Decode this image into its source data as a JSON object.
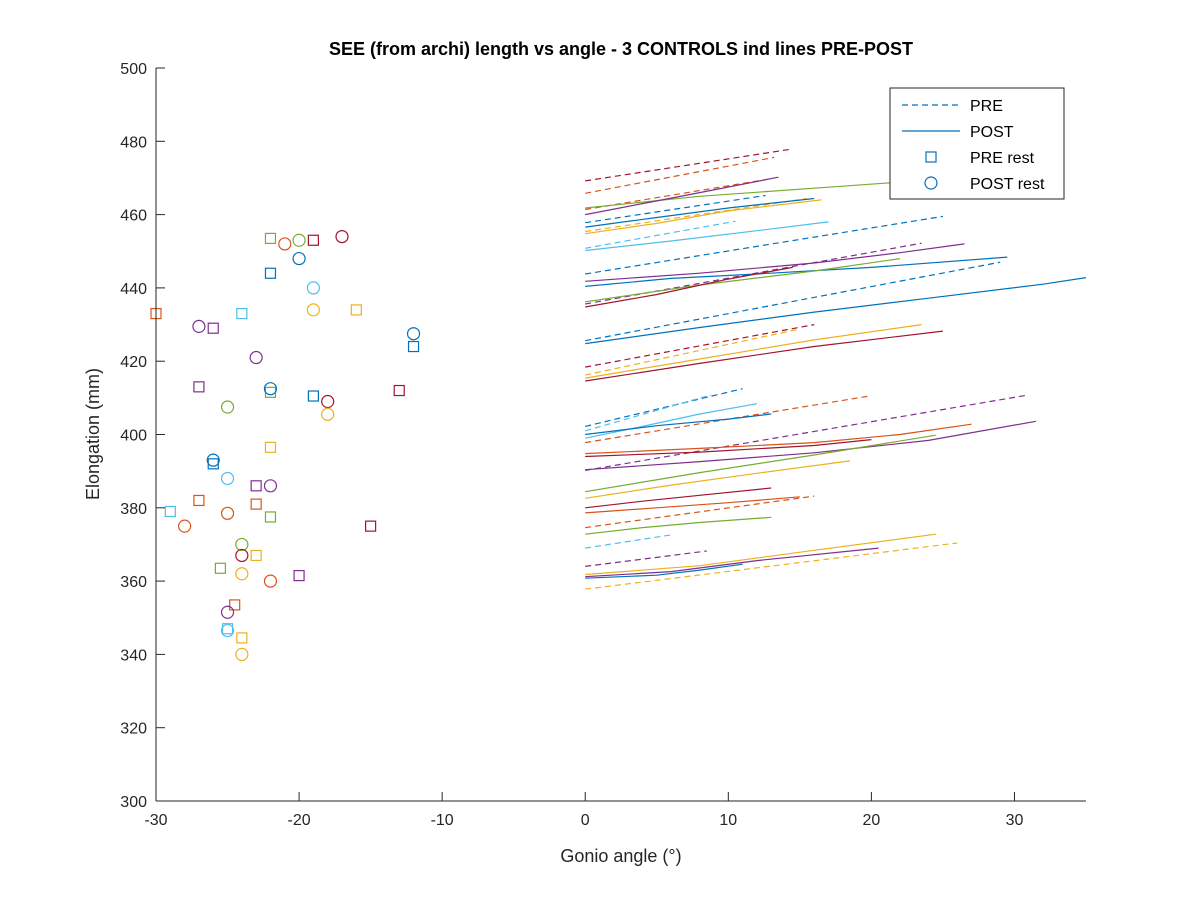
{
  "chart_data": {
    "type": "line",
    "title": "SEE (from archi) length vs angle - 3 CONTROLS ind lines PRE-POST",
    "xlabel": "Gonio angle (°)",
    "ylabel": "Elongation (mm)",
    "xlim": [
      -30,
      35
    ],
    "ylim": [
      300,
      500
    ],
    "xticks": [
      -30,
      -20,
      -10,
      0,
      10,
      20,
      30
    ],
    "yticks": [
      300,
      320,
      340,
      360,
      380,
      400,
      420,
      440,
      460,
      480,
      500
    ],
    "grid": false,
    "legend_position": "top-right",
    "legend": [
      {
        "label": "PRE",
        "style": "dashed-line"
      },
      {
        "label": "POST",
        "style": "solid-line"
      },
      {
        "label": "PRE rest",
        "style": "square-marker"
      },
      {
        "label": "POST rest",
        "style": "circle-marker"
      }
    ],
    "colors": [
      "#0072BD",
      "#D95319",
      "#EDB120",
      "#7E2F8E",
      "#77AC30",
      "#4DBEEE",
      "#A2142F"
    ],
    "series": [
      {
        "group": "PRE",
        "color": "#A2142F",
        "x": [
          0,
          14.3
        ],
        "y": [
          469.2,
          477.8
        ]
      },
      {
        "group": "PRE",
        "color": "#D95319",
        "x": [
          0,
          13.2
        ],
        "y": [
          465.8,
          475.6
        ]
      },
      {
        "group": "PRE",
        "color": "#0072BD",
        "x": [
          0,
          12.6
        ],
        "y": [
          457.8,
          465.2
        ]
      },
      {
        "group": "PRE",
        "color": "#D95319",
        "x": [
          0,
          12.7
        ],
        "y": [
          461.4,
          469.6
        ]
      },
      {
        "group": "PRE",
        "color": "#4DBEEE",
        "x": [
          0,
          10.5
        ],
        "y": [
          450.8,
          458.2
        ]
      },
      {
        "group": "PRE",
        "color": "#EDB120",
        "x": [
          0,
          15.5
        ],
        "y": [
          455.4,
          464.4
        ]
      },
      {
        "group": "PRE",
        "color": "#0072BD",
        "x": [
          0,
          25.0
        ],
        "y": [
          443.8,
          459.5
        ]
      },
      {
        "group": "PRE",
        "color": "#7E2F8E",
        "x": [
          0,
          23.5
        ],
        "y": [
          435.6,
          452.2
        ]
      },
      {
        "group": "PRE",
        "color": "#0072BD",
        "x": [
          0,
          29.0
        ],
        "y": [
          425.6,
          447.0
        ]
      },
      {
        "group": "PRE",
        "color": "#A2142F",
        "x": [
          0,
          16.0
        ],
        "y": [
          418.4,
          430.0
        ]
      },
      {
        "group": "PRE",
        "color": "#EDB120",
        "x": [
          0,
          15.0
        ],
        "y": [
          416.2,
          428.8
        ]
      },
      {
        "group": "PRE",
        "color": "#0072BD",
        "x": [
          0,
          11.0
        ],
        "y": [
          402.2,
          412.5
        ]
      },
      {
        "group": "PRE",
        "color": "#4DBEEE",
        "x": [
          0,
          8.8
        ],
        "y": [
          401.0,
          410.8
        ]
      },
      {
        "group": "PRE",
        "color": "#D95319",
        "x": [
          0,
          20.0
        ],
        "y": [
          397.8,
          410.6
        ]
      },
      {
        "group": "PRE",
        "color": "#7E2F8E",
        "x": [
          0,
          31.0
        ],
        "y": [
          390.2,
          410.8
        ]
      },
      {
        "group": "PRE",
        "color": "#D95319",
        "x": [
          0,
          16.0
        ],
        "y": [
          374.6,
          383.2
        ]
      },
      {
        "group": "PRE",
        "color": "#4DBEEE",
        "x": [
          0,
          6.0
        ],
        "y": [
          369.0,
          372.6
        ]
      },
      {
        "group": "PRE",
        "color": "#7E2F8E",
        "x": [
          0,
          8.5
        ],
        "y": [
          364.0,
          368.2
        ]
      },
      {
        "group": "PRE",
        "color": "#EDB120",
        "x": [
          0,
          26.0
        ],
        "y": [
          357.8,
          370.4
        ]
      },
      {
        "group": "POST",
        "color": "#77AC30",
        "x": [
          0,
          8,
          16,
          24,
          28
        ],
        "y": [
          461.8,
          465.0,
          467.2,
          469.4,
          470.5
        ]
      },
      {
        "group": "POST",
        "color": "#7E2F8E",
        "x": [
          0,
          4,
          8,
          13.5
        ],
        "y": [
          460.0,
          463.0,
          466.0,
          470.2
        ]
      },
      {
        "group": "POST",
        "color": "#0072BD",
        "x": [
          0,
          5,
          10,
          16
        ],
        "y": [
          456.6,
          459.2,
          461.8,
          464.4
        ]
      },
      {
        "group": "POST",
        "color": "#EDB120",
        "x": [
          0,
          5,
          10,
          16.5
        ],
        "y": [
          454.8,
          457.6,
          461.0,
          464.0
        ]
      },
      {
        "group": "POST",
        "color": "#4DBEEE",
        "x": [
          0,
          6,
          12,
          17
        ],
        "y": [
          450.2,
          452.8,
          455.6,
          458.0
        ]
      },
      {
        "group": "POST",
        "color": "#7E2F8E",
        "x": [
          0,
          8,
          16,
          22,
          26.5
        ],
        "y": [
          441.8,
          444.0,
          446.8,
          449.6,
          452.0
        ]
      },
      {
        "group": "POST",
        "color": "#0072BD",
        "x": [
          0,
          6,
          12,
          20,
          29.5
        ],
        "y": [
          440.4,
          442.6,
          443.8,
          445.6,
          448.4
        ]
      },
      {
        "group": "POST",
        "color": "#77AC30",
        "x": [
          0,
          8,
          16,
          22
        ],
        "y": [
          436.2,
          440.8,
          444.6,
          448.0
        ]
      },
      {
        "group": "POST",
        "color": "#A2142F",
        "x": [
          0,
          5,
          10,
          14.5
        ],
        "y": [
          434.8,
          438.2,
          442.4,
          445.6
        ]
      },
      {
        "group": "POST",
        "color": "#0072BD",
        "x": [
          0,
          8,
          16,
          24,
          32,
          35
        ],
        "y": [
          424.8,
          429.2,
          433.4,
          437.2,
          441.0,
          442.8
        ]
      },
      {
        "group": "POST",
        "color": "#EDB120",
        "x": [
          0,
          8,
          16,
          23.5
        ],
        "y": [
          415.4,
          420.6,
          425.8,
          430.0
        ]
      },
      {
        "group": "POST",
        "color": "#A2142F",
        "x": [
          0,
          8,
          16,
          25
        ],
        "y": [
          414.6,
          419.4,
          424.0,
          428.2
        ]
      },
      {
        "group": "POST",
        "color": "#4DBEEE",
        "x": [
          0,
          4,
          8,
          12
        ],
        "y": [
          399.0,
          402.2,
          405.6,
          408.4
        ]
      },
      {
        "group": "POST",
        "color": "#0072BD",
        "x": [
          0,
          5,
          10,
          13
        ],
        "y": [
          400.0,
          402.4,
          404.2,
          405.6
        ]
      },
      {
        "group": "POST",
        "color": "#D95319",
        "x": [
          0,
          8,
          16,
          22,
          27
        ],
        "y": [
          394.8,
          396.2,
          397.8,
          400.0,
          402.8
        ]
      },
      {
        "group": "POST",
        "color": "#A2142F",
        "x": [
          0,
          8,
          16,
          20
        ],
        "y": [
          394.0,
          395.2,
          397.0,
          398.6
        ]
      },
      {
        "group": "POST",
        "color": "#7E2F8E",
        "x": [
          0,
          8,
          16,
          24,
          31.5
        ],
        "y": [
          390.4,
          392.6,
          395.0,
          398.4,
          403.6
        ]
      },
      {
        "group": "POST",
        "color": "#77AC30",
        "x": [
          0,
          8,
          16,
          24.5
        ],
        "y": [
          384.4,
          389.6,
          394.4,
          399.8
        ]
      },
      {
        "group": "POST",
        "color": "#EDB120",
        "x": [
          0,
          6,
          12,
          18.5
        ],
        "y": [
          382.6,
          386.2,
          389.4,
          392.8
        ]
      },
      {
        "group": "POST",
        "color": "#A2142F",
        "x": [
          0,
          4,
          8,
          13
        ],
        "y": [
          380.0,
          381.8,
          383.4,
          385.4
        ]
      },
      {
        "group": "POST",
        "color": "#D95319",
        "x": [
          0,
          5,
          10,
          15
        ],
        "y": [
          378.6,
          380.0,
          381.4,
          383.0
        ]
      },
      {
        "group": "POST",
        "color": "#77AC30",
        "x": [
          0,
          4,
          8,
          13
        ],
        "y": [
          372.8,
          374.6,
          376.0,
          377.4
        ]
      },
      {
        "group": "POST",
        "color": "#EDB120",
        "x": [
          0,
          8,
          16,
          24.5
        ],
        "y": [
          361.8,
          364.2,
          368.4,
          372.8
        ]
      },
      {
        "group": "POST",
        "color": "#7E2F8E",
        "x": [
          0,
          6,
          12,
          20.5
        ],
        "y": [
          361.2,
          362.6,
          365.6,
          369.0
        ]
      },
      {
        "group": "POST",
        "color": "#0072BD",
        "x": [
          0,
          5,
          8,
          11
        ],
        "y": [
          360.8,
          361.6,
          363.0,
          364.6
        ]
      }
    ],
    "pre_rest": [
      {
        "x": -30.0,
        "y": 433.0,
        "color": "#D95319"
      },
      {
        "x": -29.0,
        "y": 379.0,
        "color": "#4DBEEE"
      },
      {
        "x": -27.0,
        "y": 413.0,
        "color": "#7E2F8E"
      },
      {
        "x": -27.0,
        "y": 382.0,
        "color": "#D95319"
      },
      {
        "x": -26.0,
        "y": 429.0,
        "color": "#7E2F8E"
      },
      {
        "x": -26.0,
        "y": 392.0,
        "color": "#0072BD"
      },
      {
        "x": -25.5,
        "y": 363.5,
        "color": "#77AC30"
      },
      {
        "x": -25.0,
        "y": 347.0,
        "color": "#4DBEEE"
      },
      {
        "x": -24.5,
        "y": 353.5,
        "color": "#D95319"
      },
      {
        "x": -24.0,
        "y": 433.0,
        "color": "#4DBEEE"
      },
      {
        "x": -24.0,
        "y": 344.5,
        "color": "#EDB120"
      },
      {
        "x": -23.0,
        "y": 386.0,
        "color": "#7E2F8E"
      },
      {
        "x": -23.0,
        "y": 381.0,
        "color": "#D95319"
      },
      {
        "x": -23.0,
        "y": 367.0,
        "color": "#EDB120"
      },
      {
        "x": -22.0,
        "y": 453.5,
        "color": "#77AC30"
      },
      {
        "x": -22.0,
        "y": 444.0,
        "color": "#0072BD"
      },
      {
        "x": -22.0,
        "y": 411.5,
        "color": "#77AC30"
      },
      {
        "x": -22.0,
        "y": 396.5,
        "color": "#EDB120"
      },
      {
        "x": -22.0,
        "y": 377.5,
        "color": "#77AC30"
      },
      {
        "x": -20.0,
        "y": 361.5,
        "color": "#7E2F8E"
      },
      {
        "x": -19.0,
        "y": 453.0,
        "color": "#A2142F"
      },
      {
        "x": -19.0,
        "y": 410.5,
        "color": "#0072BD"
      },
      {
        "x": -16.0,
        "y": 434.0,
        "color": "#EDB120"
      },
      {
        "x": -15.0,
        "y": 375.0,
        "color": "#A2142F"
      },
      {
        "x": -13.0,
        "y": 412.0,
        "color": "#A2142F"
      },
      {
        "x": -12.0,
        "y": 424.0,
        "color": "#0072BD"
      }
    ],
    "post_rest": [
      {
        "x": -28.0,
        "y": 375.0,
        "color": "#D95319"
      },
      {
        "x": -27.0,
        "y": 429.5,
        "color": "#7E2F8E"
      },
      {
        "x": -26.0,
        "y": 393.0,
        "color": "#0072BD"
      },
      {
        "x": -25.0,
        "y": 407.5,
        "color": "#77AC30"
      },
      {
        "x": -25.0,
        "y": 388.0,
        "color": "#4DBEEE"
      },
      {
        "x": -25.0,
        "y": 378.5,
        "color": "#D95319"
      },
      {
        "x": -25.0,
        "y": 351.5,
        "color": "#7E2F8E"
      },
      {
        "x": -25.0,
        "y": 346.5,
        "color": "#4DBEEE"
      },
      {
        "x": -24.0,
        "y": 370.0,
        "color": "#77AC30"
      },
      {
        "x": -24.0,
        "y": 367.0,
        "color": "#A2142F"
      },
      {
        "x": -24.0,
        "y": 362.0,
        "color": "#EDB120"
      },
      {
        "x": -24.0,
        "y": 340.0,
        "color": "#EDB120"
      },
      {
        "x": -23.0,
        "y": 421.0,
        "color": "#7E2F8E"
      },
      {
        "x": -22.0,
        "y": 412.5,
        "color": "#0072BD"
      },
      {
        "x": -22.0,
        "y": 386.0,
        "color": "#7E2F8E"
      },
      {
        "x": -22.0,
        "y": 360.0,
        "color": "#D95319"
      },
      {
        "x": -21.0,
        "y": 452.0,
        "color": "#D95319"
      },
      {
        "x": -20.0,
        "y": 453.0,
        "color": "#77AC30"
      },
      {
        "x": -20.0,
        "y": 448.0,
        "color": "#0072BD"
      },
      {
        "x": -19.0,
        "y": 440.0,
        "color": "#4DBEEE"
      },
      {
        "x": -19.0,
        "y": 434.0,
        "color": "#EDB120"
      },
      {
        "x": -18.0,
        "y": 409.0,
        "color": "#A2142F"
      },
      {
        "x": -18.0,
        "y": 405.5,
        "color": "#EDB120"
      },
      {
        "x": -17.0,
        "y": 454.0,
        "color": "#A2142F"
      },
      {
        "x": -12.0,
        "y": 427.5,
        "color": "#0072BD"
      }
    ]
  }
}
